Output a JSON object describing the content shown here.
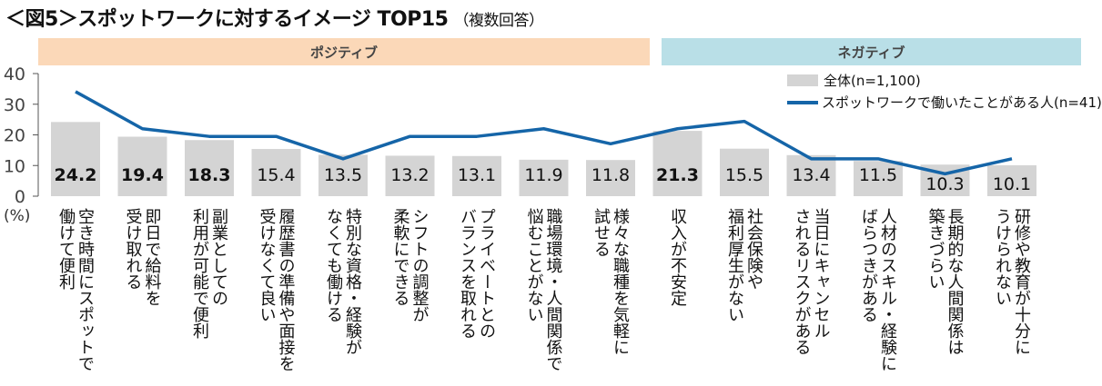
{
  "title": "＜図5＞スポットワークに対するイメージ TOP15",
  "subtitle": "（複数回答）",
  "groups": {
    "positive": "ポジティブ",
    "negative": "ネガティブ"
  },
  "colors": {
    "bar": "#d4d4d4",
    "line": "#1565a8",
    "positive_band": "#fbd8b8",
    "negative_band": "#b9dfe7"
  },
  "chart_data": {
    "type": "bar+line",
    "title": "スポットワークに対するイメージ TOP15",
    "ylabel": "(%)",
    "ylim": [
      0,
      40
    ],
    "yticks": [
      0,
      10,
      20,
      30,
      40
    ],
    "legend_position": "top-right",
    "categories": [
      "空き時間にスポットで\n働けて便利",
      "即日で給料を\n受け取れる",
      "副業としての\n利用が可能で便利",
      "履歴書の準備や面接を\n受けなくて良い",
      "特別な資格・経験が\nなくても働ける",
      "シフトの調整が\n柔軟にできる",
      "プライベートとの\nバランスを取れる",
      "職場環境・人間関係で\n悩むことがない",
      "様々な職種を気軽に\n試せる",
      "収入が不安定",
      "社会保険や\n福利厚生がない",
      "当日にキャンセル\nされるリスクがある",
      "人材のスキル・経験に\nばらつきがある",
      "長期的な人間関係は\n築きづらい",
      "研修や教育が十分に\nうけられない"
    ],
    "group_of_category": [
      "positive",
      "positive",
      "positive",
      "positive",
      "positive",
      "positive",
      "positive",
      "positive",
      "positive",
      "negative",
      "negative",
      "negative",
      "negative",
      "negative",
      "negative"
    ],
    "series": [
      {
        "name": "全体(n=1,100)",
        "type": "bar",
        "values": [
          24.2,
          19.4,
          18.3,
          15.4,
          13.5,
          13.2,
          13.1,
          11.9,
          11.8,
          21.3,
          15.5,
          13.4,
          11.5,
          10.3,
          10.1
        ],
        "labels": [
          "24.2",
          "19.4",
          "18.3",
          "15.4",
          "13.5",
          "13.2",
          "13.1",
          "11.9",
          "11.8",
          "21.3",
          "15.5",
          "13.4",
          "11.5",
          "10.3",
          "10.1"
        ],
        "bold": [
          true,
          true,
          true,
          false,
          false,
          false,
          false,
          false,
          false,
          true,
          false,
          false,
          false,
          false,
          false
        ]
      },
      {
        "name": "スポットワークで働いたことがある人(n=41)",
        "type": "line",
        "values": [
          34.1,
          22.0,
          19.5,
          19.5,
          12.2,
          19.5,
          19.5,
          22.0,
          17.1,
          22.0,
          24.4,
          12.2,
          12.2,
          7.3,
          12.2
        ]
      }
    ]
  }
}
